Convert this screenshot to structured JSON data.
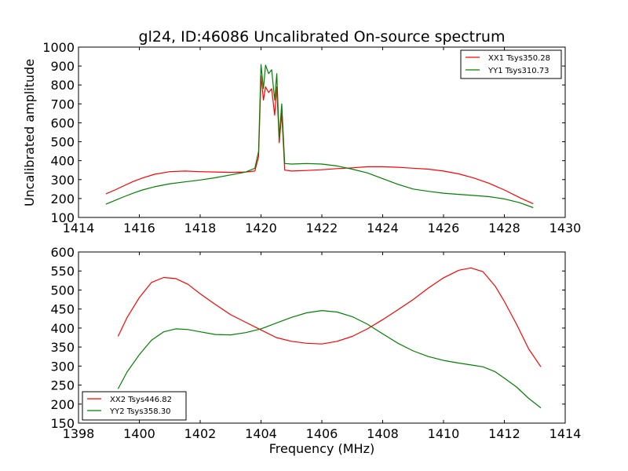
{
  "chart_data": [
    {
      "type": "line",
      "title": "gl24, ID:46086 Uncalibrated On-source spectrum",
      "xlabel": "",
      "ylabel": "Uncalibrated amplitude",
      "xlim": [
        1414,
        1430
      ],
      "ylim": [
        100,
        1000
      ],
      "xticks": [
        1414,
        1416,
        1418,
        1420,
        1422,
        1424,
        1426,
        1428,
        1430
      ],
      "yticks": [
        100,
        200,
        300,
        400,
        500,
        600,
        700,
        800,
        900,
        1000
      ],
      "grid": false,
      "legend_position": "upper right",
      "series": [
        {
          "name": "XX1 Tsys350.28",
          "color": "#ff0000",
          "x": [
            1414.9,
            1415.2,
            1415.5,
            1415.8,
            1416.1,
            1416.5,
            1417.0,
            1417.5,
            1418.0,
            1418.5,
            1419.0,
            1419.5,
            1419.8,
            1419.92,
            1420.0,
            1420.08,
            1420.15,
            1420.25,
            1420.35,
            1420.45,
            1420.52,
            1420.6,
            1420.68,
            1420.78,
            1421.0,
            1421.5,
            1422.0,
            1422.5,
            1423.0,
            1423.5,
            1424.0,
            1424.5,
            1425.0,
            1425.5,
            1426.0,
            1426.5,
            1427.0,
            1427.5,
            1428.0,
            1428.5,
            1428.95
          ],
          "y": [
            225,
            245,
            268,
            290,
            308,
            328,
            342,
            345,
            342,
            340,
            338,
            340,
            345,
            420,
            848,
            720,
            790,
            760,
            780,
            640,
            790,
            495,
            650,
            350,
            345,
            348,
            352,
            358,
            362,
            368,
            368,
            365,
            360,
            355,
            345,
            330,
            308,
            280,
            245,
            205,
            172
          ]
        },
        {
          "name": "YY1 Tsys310.73",
          "color": "#008000",
          "x": [
            1414.9,
            1415.2,
            1415.5,
            1415.8,
            1416.1,
            1416.5,
            1417.0,
            1417.5,
            1418.0,
            1418.5,
            1419.0,
            1419.5,
            1419.8,
            1419.92,
            1420.0,
            1420.08,
            1420.15,
            1420.25,
            1420.35,
            1420.45,
            1420.52,
            1420.6,
            1420.68,
            1420.78,
            1421.0,
            1421.5,
            1422.0,
            1422.5,
            1423.0,
            1423.5,
            1424.0,
            1424.5,
            1425.0,
            1425.5,
            1426.0,
            1426.5,
            1427.0,
            1427.5,
            1428.0,
            1428.5,
            1428.95
          ],
          "y": [
            170,
            190,
            210,
            228,
            245,
            262,
            278,
            288,
            298,
            310,
            325,
            340,
            360,
            450,
            908,
            780,
            905,
            860,
            880,
            720,
            860,
            520,
            700,
            385,
            382,
            385,
            382,
            372,
            355,
            335,
            305,
            275,
            250,
            238,
            228,
            222,
            216,
            210,
            198,
            178,
            152
          ]
        }
      ]
    },
    {
      "type": "line",
      "title": "",
      "xlabel": "Frequency (MHz)",
      "ylabel": "",
      "xlim": [
        1398,
        1414
      ],
      "ylim": [
        150,
        600
      ],
      "xticks": [
        1398,
        1400,
        1402,
        1404,
        1406,
        1408,
        1410,
        1412,
        1414
      ],
      "yticks": [
        150,
        200,
        250,
        300,
        350,
        400,
        450,
        500,
        550,
        600
      ],
      "grid": false,
      "legend_position": "lower left",
      "series": [
        {
          "name": "XX2 Tsys446.82",
          "color": "#ff0000",
          "x": [
            1399.3,
            1399.6,
            1400.0,
            1400.4,
            1400.8,
            1401.2,
            1401.6,
            1402.0,
            1402.5,
            1403.0,
            1403.5,
            1404.0,
            1404.5,
            1405.0,
            1405.5,
            1406.0,
            1406.5,
            1407.0,
            1407.5,
            1408.0,
            1408.5,
            1409.0,
            1409.5,
            1410.0,
            1410.5,
            1410.9,
            1411.3,
            1411.7,
            1412.0,
            1412.4,
            1412.8,
            1413.2
          ],
          "y": [
            378,
            428,
            480,
            520,
            533,
            530,
            515,
            490,
            462,
            435,
            415,
            395,
            375,
            365,
            360,
            358,
            365,
            378,
            398,
            422,
            448,
            475,
            505,
            532,
            552,
            558,
            548,
            510,
            470,
            410,
            345,
            298
          ]
        },
        {
          "name": "YY2 Tsys358.30",
          "color": "#008000",
          "x": [
            1399.3,
            1399.6,
            1400.0,
            1400.4,
            1400.8,
            1401.2,
            1401.6,
            1402.0,
            1402.5,
            1403.0,
            1403.5,
            1404.0,
            1404.5,
            1405.0,
            1405.5,
            1406.0,
            1406.5,
            1407.0,
            1407.5,
            1408.0,
            1408.5,
            1409.0,
            1409.5,
            1410.0,
            1410.5,
            1410.9,
            1411.3,
            1411.7,
            1412.0,
            1412.4,
            1412.8,
            1413.2
          ],
          "y": [
            240,
            285,
            330,
            368,
            390,
            398,
            396,
            390,
            383,
            382,
            388,
            398,
            413,
            428,
            440,
            446,
            442,
            430,
            410,
            385,
            360,
            340,
            325,
            315,
            308,
            303,
            298,
            285,
            268,
            245,
            215,
            190
          ]
        }
      ]
    }
  ]
}
